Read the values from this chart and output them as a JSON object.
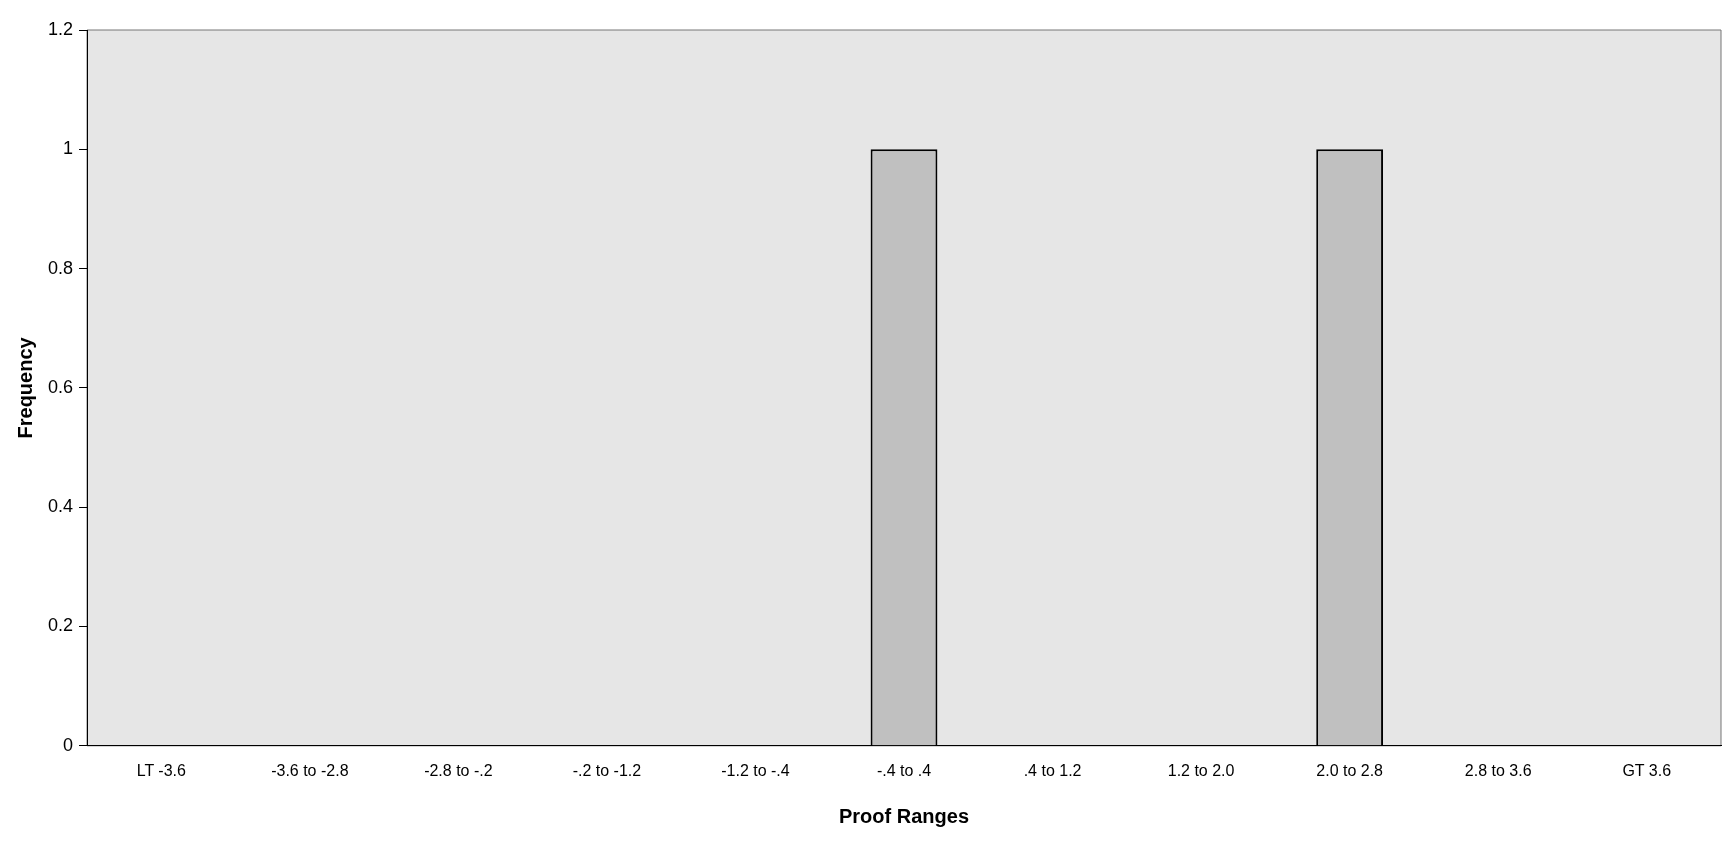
{
  "chart_data": {
    "type": "bar",
    "xlabel": "Proof Ranges",
    "ylabel": "Frequency",
    "categories": [
      "LT -3.6",
      "-3.6 to -2.8",
      "-2.8 to -.2",
      "-.2 to -1.2",
      "-1.2 to -.4",
      "-.4 to .4",
      ".4 to 1.2",
      "1.2 to 2.0",
      "2.0 to 2.8",
      "2.8 to 3.6",
      "GT 3.6"
    ],
    "values": [
      0,
      0,
      0,
      0,
      0,
      1,
      0,
      0,
      1,
      0,
      0
    ],
    "color": "#c0c0c0",
    "ylim": [
      0,
      1.2
    ],
    "yticks": [
      0,
      0.2,
      0.4,
      0.6,
      0.8,
      1,
      1.2
    ],
    "grid": false,
    "legend": false
  }
}
